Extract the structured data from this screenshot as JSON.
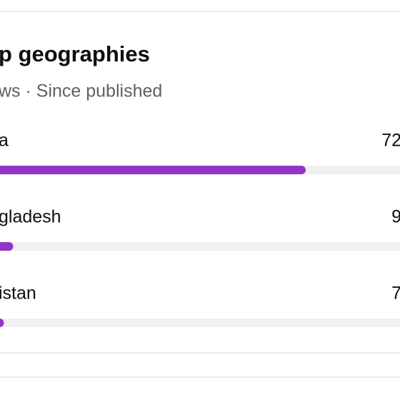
{
  "card": {
    "title": "p geographies",
    "subtitle": "ws · Since published",
    "color": "#9334c6",
    "rows": [
      {
        "label": "a",
        "value": 72
      },
      {
        "label": "gladesh",
        "value": 9
      },
      {
        "label": "istan",
        "value": 7
      }
    ]
  }
}
